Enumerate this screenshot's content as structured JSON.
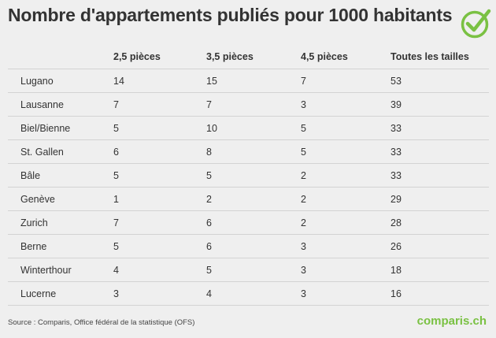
{
  "title": "Nombre d'appartements publiés pour 1000 habitants",
  "columns": [
    "",
    "2,5 pièces",
    "3,5 pièces",
    "4,5 pièces",
    "Toutes les tailles"
  ],
  "rows": [
    [
      "Lugano",
      "14",
      "15",
      "7",
      "53"
    ],
    [
      "Lausanne",
      "7",
      "7",
      "3",
      "39"
    ],
    [
      "Biel/Bienne",
      "5",
      "10",
      "5",
      "33"
    ],
    [
      "St. Gallen",
      "6",
      "8",
      "5",
      "33"
    ],
    [
      "Bâle",
      "5",
      "5",
      "2",
      "33"
    ],
    [
      "Genève",
      "1",
      "2",
      "2",
      "29"
    ],
    [
      "Zurich",
      "7",
      "6",
      "2",
      "28"
    ],
    [
      "Berne",
      "5",
      "6",
      "3",
      "26"
    ],
    [
      "Winterthour",
      "4",
      "5",
      "3",
      "18"
    ],
    [
      "Lucerne",
      "3",
      "4",
      "3",
      "16"
    ]
  ],
  "source": "Source : Comparis, Office fédéral de la statistique (OFS)",
  "brand": "comparis.ch",
  "logo_icon": "check-circle-icon",
  "colors": {
    "background": "#efefef",
    "text": "#333333",
    "divider": "#d3d3d3",
    "brand": "#7ac143"
  },
  "chart_data": {
    "type": "table",
    "title": "Nombre d'appartements publiés pour 1000 habitants",
    "columns": [
      "2,5 pièces",
      "3,5 pièces",
      "4,5 pièces",
      "Toutes les tailles"
    ],
    "categories": [
      "Lugano",
      "Lausanne",
      "Biel/Bienne",
      "St. Gallen",
      "Bâle",
      "Genève",
      "Zurich",
      "Berne",
      "Winterthour",
      "Lucerne"
    ],
    "series": [
      {
        "name": "2,5 pièces",
        "values": [
          14,
          7,
          5,
          6,
          5,
          1,
          7,
          5,
          4,
          3
        ]
      },
      {
        "name": "3,5 pièces",
        "values": [
          15,
          7,
          10,
          8,
          5,
          2,
          6,
          6,
          5,
          4
        ]
      },
      {
        "name": "4,5 pièces",
        "values": [
          7,
          3,
          5,
          5,
          2,
          2,
          2,
          3,
          3,
          3
        ]
      },
      {
        "name": "Toutes les tailles",
        "values": [
          53,
          39,
          33,
          33,
          33,
          29,
          28,
          26,
          18,
          16
        ]
      }
    ]
  }
}
